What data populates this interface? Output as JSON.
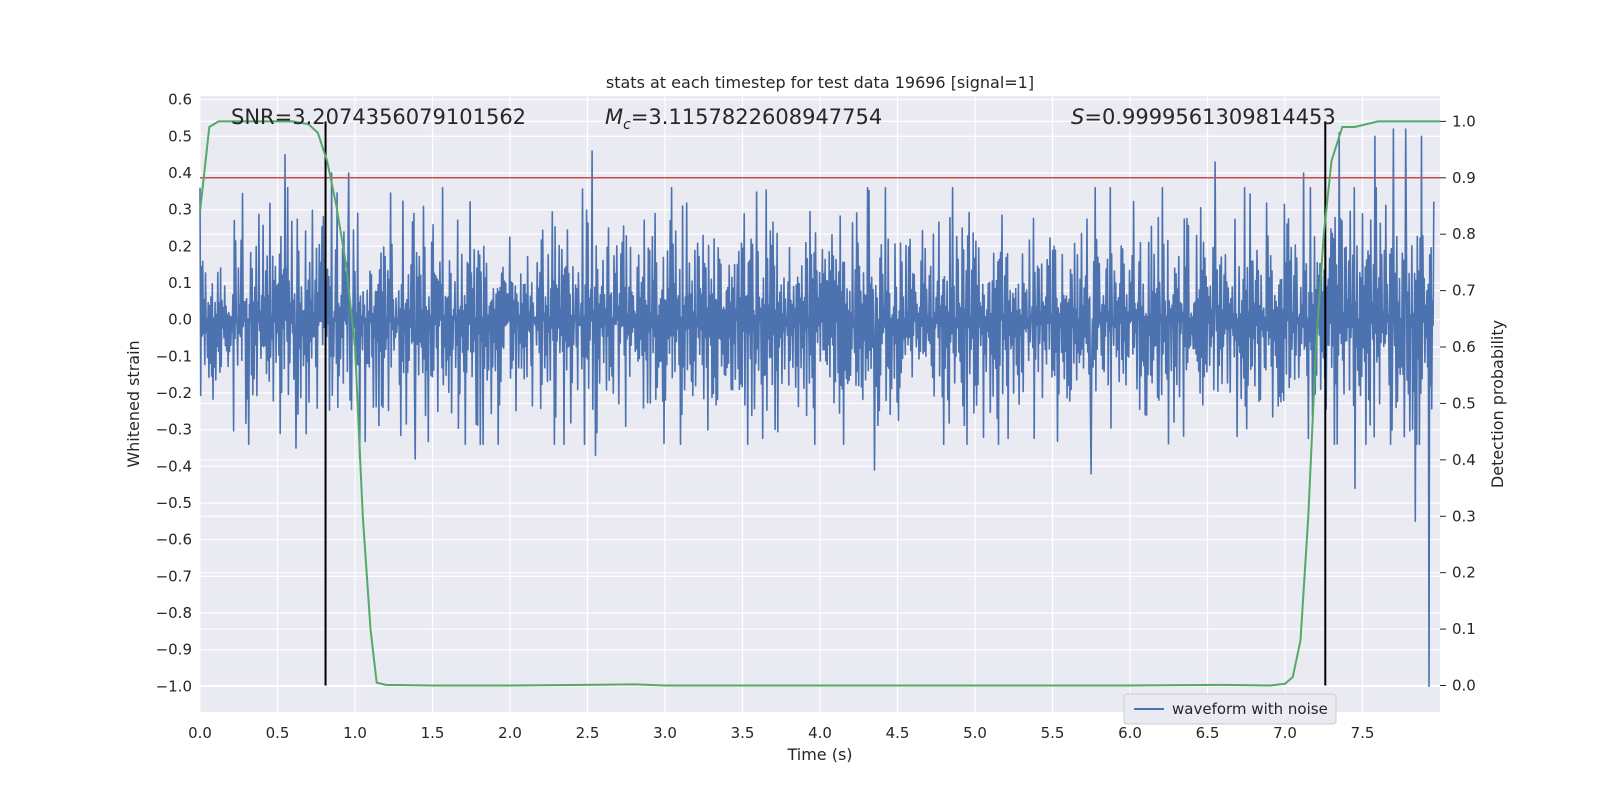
{
  "chart_data": {
    "type": "line",
    "title": "stats at each timestep for test data 19696 [signal=1]",
    "xlabel": "Time (s)",
    "ylabel": "Whitened strain",
    "y2label": "Detection probability",
    "xlim": [
      0.0,
      8.0
    ],
    "ylim": [
      -1.07,
      0.61
    ],
    "y2lim": [
      -0.047,
      1.045
    ],
    "x_ticks": [
      0.0,
      0.5,
      1.0,
      1.5,
      2.0,
      2.5,
      3.0,
      3.5,
      4.0,
      4.5,
      5.0,
      5.5,
      6.0,
      6.5,
      7.0,
      7.5
    ],
    "x_tick_labels": [
      "0.0",
      "0.5",
      "1.0",
      "1.5",
      "2.0",
      "2.5",
      "3.0",
      "3.5",
      "4.0",
      "4.5",
      "5.0",
      "5.5",
      "6.0",
      "6.5",
      "7.0",
      "7.5"
    ],
    "y_ticks": [
      0.6,
      0.5,
      0.4,
      0.3,
      0.2,
      0.1,
      0.0,
      -0.1,
      -0.2,
      -0.3,
      -0.4,
      -0.5,
      -0.6,
      -0.7,
      -0.8,
      -0.9,
      -1.0
    ],
    "y_tick_labels": [
      "0.6",
      "0.5",
      "0.4",
      "0.3",
      "0.2",
      "0.1",
      "0.0",
      "−0.1",
      "−0.2",
      "−0.3",
      "−0.4",
      "−0.5",
      "−0.6",
      "−0.7",
      "−0.8",
      "−0.9",
      "−1.0"
    ],
    "y2_ticks": [
      1.0,
      0.9,
      0.8,
      0.7,
      0.6,
      0.5,
      0.4,
      0.3,
      0.2,
      0.1,
      0.0
    ],
    "y2_tick_labels": [
      "1.0",
      "0.9",
      "0.8",
      "0.7",
      "0.6",
      "0.5",
      "0.4",
      "0.3",
      "0.2",
      "0.1",
      "0.0"
    ],
    "grid": true,
    "legend": {
      "position": "lower-right",
      "entries": [
        "waveform with noise"
      ]
    },
    "annotations": {
      "snr": "SNR=3.2074356079101562",
      "mc_symbol": "M",
      "mc_sub": "c",
      "mc_value": "=3.1157822608947754",
      "s_symbol": "S",
      "s_value": "=0.9999561309814453"
    },
    "threshold_y2": 0.9,
    "vlines_x": [
      0.81,
      7.26
    ],
    "series": [
      {
        "name": "waveform with noise",
        "axis": "left",
        "color": "#4c72b0",
        "x_start": 0.0,
        "x_end": 7.96,
        "typical_amplitude": 0.22,
        "spikes": [
          [
            0.55,
            0.45
          ],
          [
            0.62,
            -0.35
          ],
          [
            0.85,
            0.4
          ],
          [
            0.96,
            0.4
          ],
          [
            1.03,
            -0.38
          ],
          [
            1.39,
            -0.38
          ],
          [
            2.53,
            0.46
          ],
          [
            2.55,
            -0.37
          ],
          [
            4.35,
            -0.41
          ],
          [
            5.75,
            -0.42
          ],
          [
            6.55,
            0.43
          ],
          [
            7.12,
            0.4
          ],
          [
            7.35,
            0.51
          ],
          [
            7.45,
            -0.46
          ],
          [
            7.58,
            0.5
          ],
          [
            7.7,
            0.52
          ],
          [
            7.78,
            0.52
          ],
          [
            7.84,
            -0.55
          ],
          [
            7.88,
            0.5
          ],
          [
            7.93,
            -1.0
          ]
        ]
      },
      {
        "name": "detection probability",
        "axis": "right",
        "color": "#55a868",
        "points": [
          [
            0.0,
            0.84
          ],
          [
            0.06,
            0.99
          ],
          [
            0.12,
            1.0
          ],
          [
            0.3,
            1.0
          ],
          [
            0.6,
            1.0
          ],
          [
            0.7,
            0.995
          ],
          [
            0.76,
            0.98
          ],
          [
            0.82,
            0.93
          ],
          [
            0.88,
            0.85
          ],
          [
            0.94,
            0.75
          ],
          [
            1.0,
            0.6
          ],
          [
            1.05,
            0.3
          ],
          [
            1.1,
            0.1
          ],
          [
            1.14,
            0.005
          ],
          [
            1.2,
            0.001
          ],
          [
            1.5,
            0.0
          ],
          [
            2.0,
            0.0
          ],
          [
            2.5,
            0.001
          ],
          [
            2.8,
            0.002
          ],
          [
            3.0,
            0.0
          ],
          [
            4.0,
            0.0
          ],
          [
            5.0,
            0.0
          ],
          [
            6.0,
            0.0
          ],
          [
            6.6,
            0.001
          ],
          [
            6.9,
            0.0
          ],
          [
            7.0,
            0.003
          ],
          [
            7.05,
            0.015
          ],
          [
            7.1,
            0.08
          ],
          [
            7.15,
            0.3
          ],
          [
            7.2,
            0.6
          ],
          [
            7.25,
            0.8
          ],
          [
            7.3,
            0.93
          ],
          [
            7.37,
            0.99
          ],
          [
            7.45,
            0.99
          ],
          [
            7.6,
            1.0
          ],
          [
            8.0,
            1.0
          ]
        ]
      }
    ]
  }
}
